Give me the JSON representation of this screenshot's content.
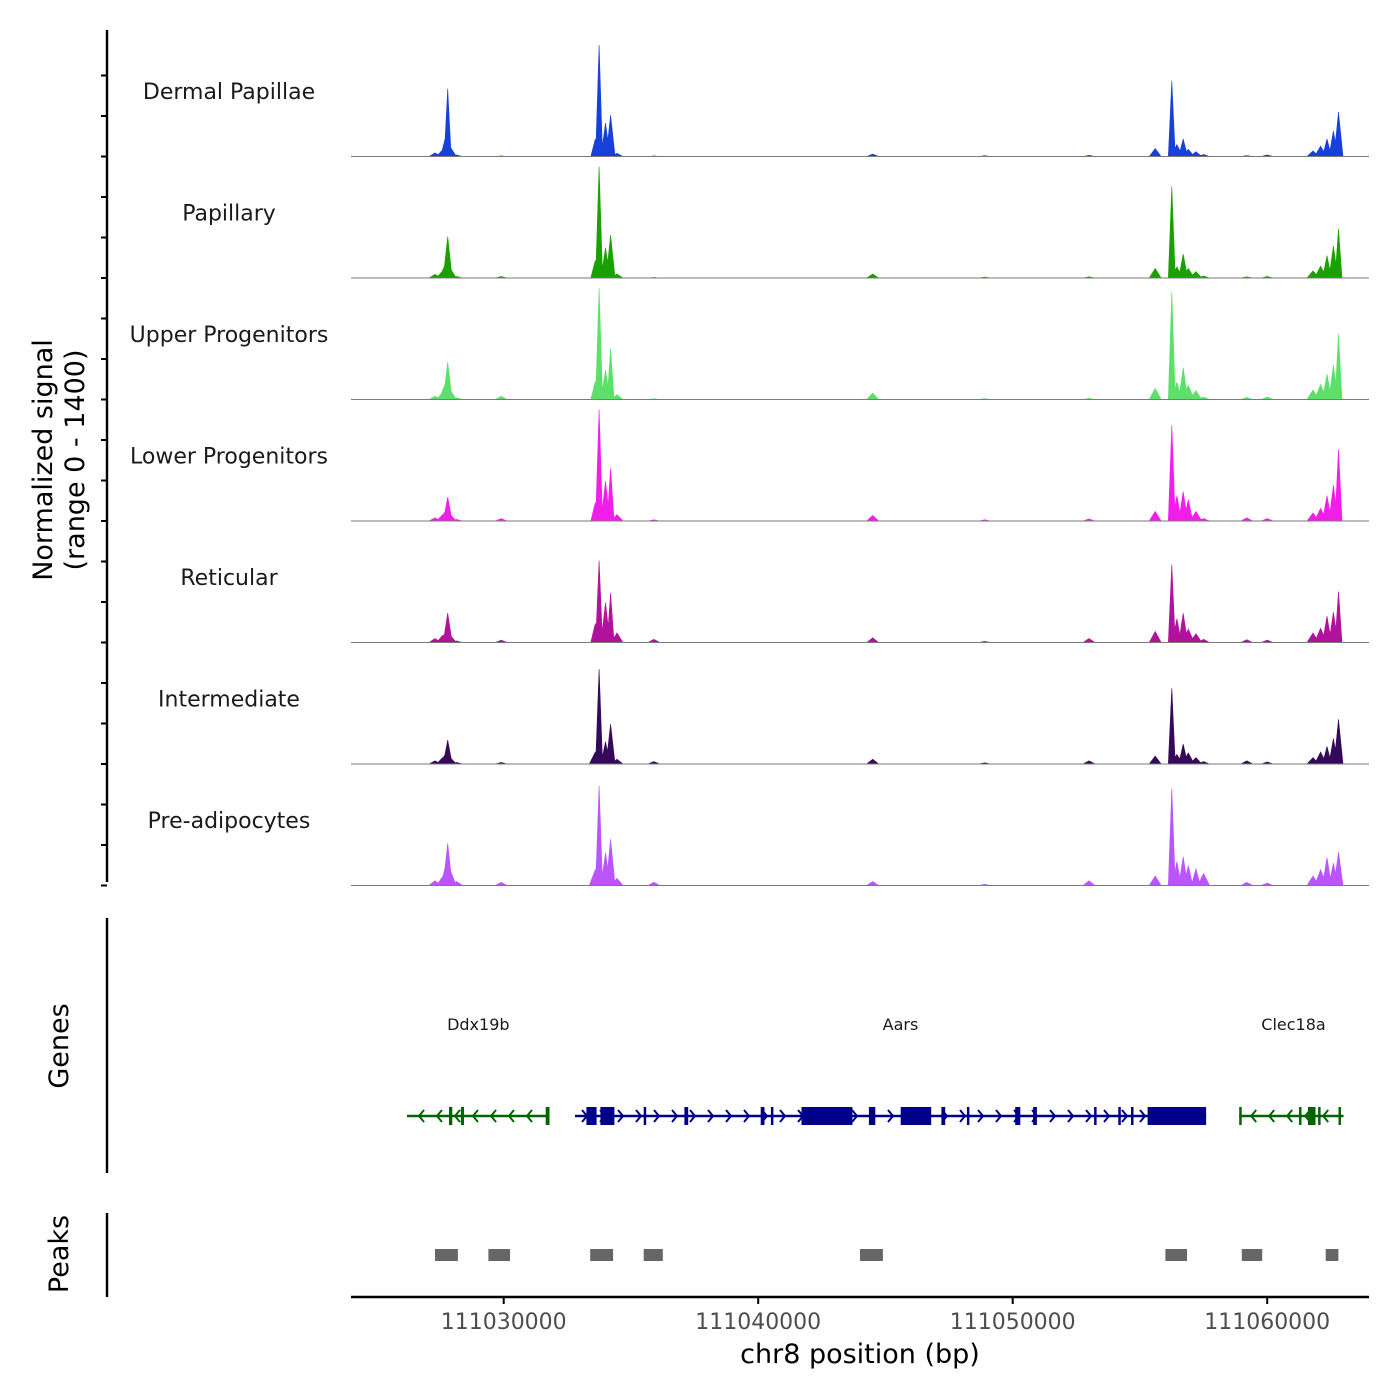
{
  "chart_data": {
    "type": "area",
    "title": "",
    "chromosome": "chr8",
    "xlabel": "chr8 position (bp)",
    "ylabel": "Normalized signal",
    "ylabel_range": "(range 0 - 1400)",
    "ylim": [
      0,
      1400
    ],
    "xlim": [
      111024000,
      111064000
    ],
    "x_ticks": [
      111030000,
      111040000,
      111050000,
      111060000
    ],
    "x_tick_labels": [
      "111030000",
      "111040000",
      "111050000",
      "111060000"
    ],
    "peak_profile_positions": [
      111027300,
      111027600,
      111027700,
      111027800,
      111027900,
      111028150,
      111029900,
      111033600,
      111033750,
      111034000,
      111034200,
      111034450,
      111035900,
      111044500,
      111048900,
      111053000,
      111055600,
      111056250,
      111056450,
      111056700,
      111056900,
      111057200,
      111057500,
      111059200,
      111060000,
      111061800,
      111062100,
      111062350,
      111062600,
      111062800
    ],
    "series": [
      {
        "name": "Dermal Papillae",
        "color": "#1740d8",
        "values": [
          45,
          85,
          230,
          850,
          120,
          20,
          8,
          220,
          1400,
          420,
          520,
          40,
          8,
          30,
          10,
          15,
          100,
          950,
          150,
          220,
          90,
          60,
          25,
          12,
          20,
          70,
          130,
          220,
          320,
          560
        ]
      },
      {
        "name": "Papillary",
        "color": "#1aa100",
        "values": [
          45,
          90,
          170,
          520,
          120,
          20,
          20,
          220,
          1400,
          380,
          540,
          50,
          8,
          50,
          12,
          15,
          120,
          1150,
          140,
          300,
          120,
          80,
          25,
          15,
          20,
          90,
          150,
          280,
          400,
          620
        ]
      },
      {
        "name": "Upper Progenitors",
        "color": "#5ce06a",
        "values": [
          40,
          90,
          200,
          470,
          120,
          20,
          40,
          230,
          1400,
          370,
          640,
          60,
          10,
          80,
          12,
          15,
          140,
          1350,
          220,
          400,
          180,
          110,
          30,
          25,
          30,
          120,
          190,
          320,
          430,
          820
        ]
      },
      {
        "name": "Lower Progenitors",
        "color": "#f01ee8",
        "values": [
          40,
          80,
          120,
          300,
          80,
          20,
          30,
          230,
          1400,
          500,
          660,
          80,
          15,
          70,
          15,
          25,
          120,
          1200,
          320,
          370,
          270,
          120,
          30,
          40,
          30,
          100,
          160,
          320,
          450,
          900
        ]
      },
      {
        "name": "Reticular",
        "color": "#b1129c",
        "values": [
          50,
          90,
          120,
          370,
          90,
          20,
          30,
          240,
          1030,
          500,
          620,
          120,
          40,
          60,
          15,
          50,
          140,
          980,
          300,
          370,
          170,
          110,
          40,
          35,
          30,
          120,
          180,
          330,
          380,
          640
        ]
      },
      {
        "name": "Intermediate",
        "color": "#35095a",
        "values": [
          40,
          80,
          120,
          300,
          80,
          20,
          20,
          150,
          1190,
          280,
          500,
          60,
          30,
          60,
          15,
          40,
          100,
          950,
          120,
          250,
          140,
          80,
          30,
          40,
          25,
          80,
          150,
          220,
          320,
          560
        ]
      },
      {
        "name": "Pre-adipocytes",
        "color": "#b955fa",
        "values": [
          60,
          110,
          230,
          530,
          190,
          50,
          40,
          200,
          1250,
          410,
          580,
          90,
          40,
          50,
          15,
          60,
          120,
          1220,
          300,
          360,
          250,
          210,
          150,
          40,
          30,
          120,
          200,
          350,
          280,
          420
        ]
      }
    ],
    "genes": [
      {
        "name": "Ddx19b",
        "strand": "-",
        "color": "#006400",
        "start": 111026200,
        "end": 111031800,
        "exons": [
          [
            111027850,
            111027980
          ],
          [
            111028320,
            111028440
          ],
          [
            111031650,
            111031800
          ]
        ]
      },
      {
        "name": "Aars",
        "strand": "+",
        "color": "#00008b",
        "start": 111032800,
        "end": 111057600,
        "exons": [
          [
            111033250,
            111033650
          ],
          [
            111033800,
            111034350
          ],
          [
            111035500,
            111035600
          ],
          [
            111037100,
            111037250
          ],
          [
            111040100,
            111040250
          ],
          [
            111040500,
            111040600
          ],
          [
            111041700,
            111043700
          ],
          [
            111044350,
            111044600
          ],
          [
            111045600,
            111046800
          ],
          [
            111047200,
            111047350
          ],
          [
            111048200,
            111048300
          ],
          [
            111050100,
            111050300
          ],
          [
            111050800,
            111050950
          ],
          [
            111053200,
            111053300
          ],
          [
            111054150,
            111054250
          ],
          [
            111054650,
            111054750
          ],
          [
            111055300,
            111057600
          ]
        ]
      },
      {
        "name": "Clec18a",
        "strand": "-",
        "color": "#006400",
        "start": 111058900,
        "end": 111063000,
        "exons": [
          [
            111058900,
            111059000
          ],
          [
            111061250,
            111061330
          ],
          [
            111061600,
            111061900
          ],
          [
            111062000,
            111062080
          ],
          [
            111062800,
            111062900
          ]
        ]
      }
    ],
    "peaks": [
      [
        111027300,
        111028200
      ],
      [
        111029400,
        111030250
      ],
      [
        111033400,
        111034300
      ],
      [
        111035500,
        111036250
      ],
      [
        111044000,
        111044900
      ],
      [
        111056000,
        111056850
      ],
      [
        111059000,
        111059800
      ],
      [
        111062300,
        111062800
      ]
    ],
    "panel_labels": {
      "genes": "Genes",
      "peaks": "Peaks"
    },
    "colors": {
      "baseline": "#7a7a7a",
      "peak_box": "#666666",
      "axis": "#000000"
    }
  }
}
